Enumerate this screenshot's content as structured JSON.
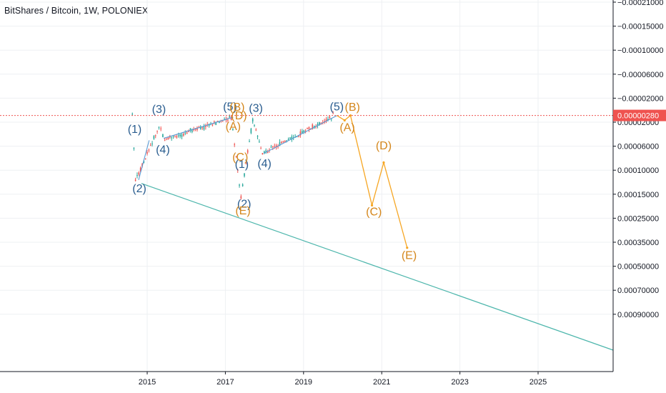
{
  "header": {
    "title": "BitShares / Bitcoin, 1W, POLONIEX"
  },
  "colors": {
    "up": "#26a69a",
    "down": "#ef5350",
    "wave_blue": "#2a5d8f",
    "wave_orange": "#d4861b",
    "trendline": "#4db6ac",
    "blue_line": "#5b9bd5",
    "orange_line": "#f6a623",
    "price_line": "#ef5350",
    "grid": "#eef0f3",
    "axis": "#131722"
  },
  "current_price": {
    "label": "0.00000280",
    "value": 2.8e-06
  },
  "chart_data": {
    "type": "line",
    "title": "BitShares / Bitcoin, 1W, POLONIEX",
    "scale": "log-inverted",
    "y_tick_labels": [
      "−0.00021000",
      "−0.00015000",
      "−0.00010000",
      "−0.00006000",
      "−0.00002000",
      "0.00002000",
      "0.00006000",
      "0.00010000",
      "0.00015000",
      "0.00025000",
      "0.00035000",
      "0.00050000",
      "0.00070000",
      "0.00090000"
    ],
    "x_tick_labels": [
      "2015",
      "2017",
      "2019",
      "2021",
      "2023",
      "2025"
    ],
    "price_path": [
      {
        "x": 2014.62,
        "y": 2.8e-06
      },
      {
        "x": 2014.7,
        "y": 0.00012
      },
      {
        "x": 2015.3,
        "y": 2.5e-05
      },
      {
        "x": 2015.45,
        "y": 4.5e-05
      },
      {
        "x": 2017.15,
        "y": 6e-06
      },
      {
        "x": 2017.4,
        "y": 0.00016
      },
      {
        "x": 2017.7,
        "y": 9e-06
      },
      {
        "x": 2017.95,
        "y": 7e-05
      },
      {
        "x": 2019.8,
        "y": 2.8e-06
      }
    ],
    "series": [
      {
        "points": [
          {
            "x": 2020.05,
            "y": 1.2e-05
          },
          {
            "x": 2020.2,
            "y": 2.8e-06
          },
          {
            "x": 2020.75,
            "y": 0.00019
          },
          {
            "x": 2021.05,
            "y": 8.5e-05
          },
          {
            "x": 2021.65,
            "y": 0.00038
          }
        ]
      }
    ],
    "labels_blue": [
      {
        "text": "(1)",
        "x": 2014.68,
        "y": 3.3e-05
      },
      {
        "text": "(2)",
        "x": 2014.8,
        "y": 0.000145
      },
      {
        "text": "(3)",
        "x": 2015.3,
        "y": 1e-06
      },
      {
        "text": "(4)",
        "x": 2015.4,
        "y": 7e-05
      },
      {
        "text": "(5)",
        "x": 2017.12,
        "y": 1e-07
      },
      {
        "text": "(1)",
        "x": 2017.42,
        "y": 9.5e-05
      },
      {
        "text": "(2)",
        "x": 2017.48,
        "y": 0.0002
      },
      {
        "text": "(3)",
        "x": 2017.78,
        "y": 5e-07
      },
      {
        "text": "(4)",
        "x": 2018.0,
        "y": 9.4e-05
      },
      {
        "text": "(5)",
        "x": 2019.85,
        "y": 1e-07
      }
    ],
    "labels_orange": [
      {
        "text": "(B)",
        "x": 2017.3,
        "y": 2e-07
      },
      {
        "text": "(D)",
        "x": 2017.35,
        "y": 9.5e-06
      },
      {
        "text": "(A)",
        "x": 2017.2,
        "y": 2.9e-05
      },
      {
        "text": "(C)",
        "x": 2017.38,
        "y": 8.2e-05
      },
      {
        "text": "(E)",
        "x": 2017.45,
        "y": 0.00023
      },
      {
        "text": "(B)",
        "x": 2020.25,
        "y": 2e-07
      },
      {
        "text": "(A)",
        "x": 2020.12,
        "y": 3e-05
      },
      {
        "text": "(C)",
        "x": 2020.8,
        "y": 0.000235
      },
      {
        "text": "(D)",
        "x": 2021.05,
        "y": 6.4e-05
      },
      {
        "text": "(E)",
        "x": 2021.7,
        "y": 0.00045
      }
    ]
  }
}
